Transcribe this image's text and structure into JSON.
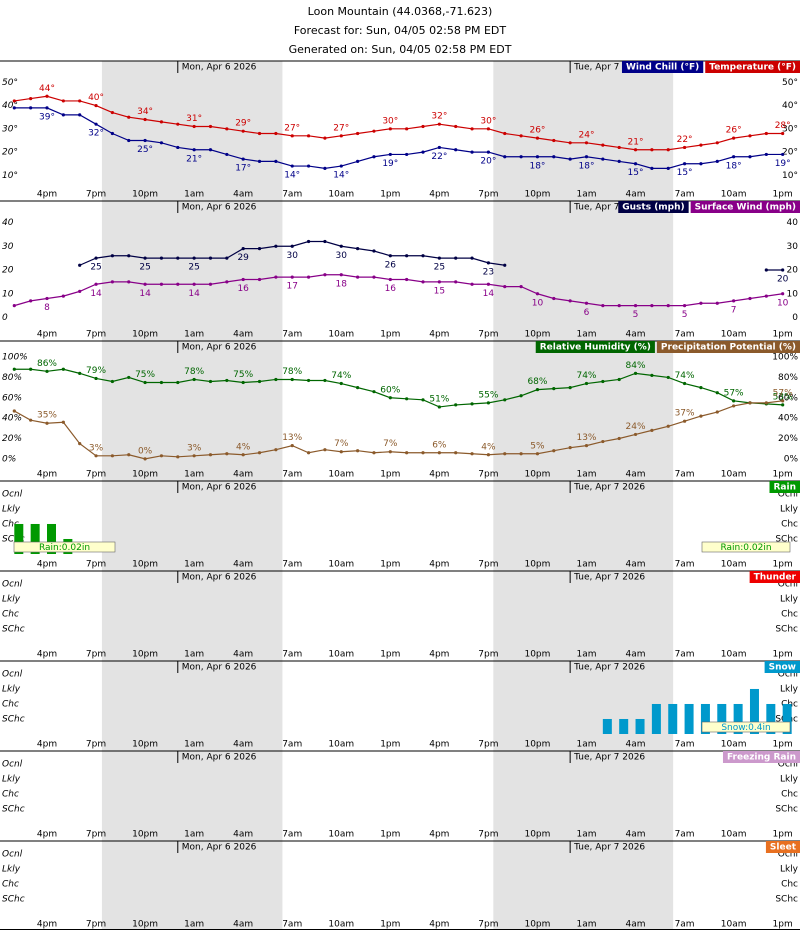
{
  "header": {
    "lines": [
      "Loon Mountain (44.0368,-71.623)",
      "Forecast for: Sun, 04/05 02:58 PM EDT",
      "Generated on: Sun, 04/05 02:58 PM EDT"
    ]
  },
  "time_axis": {
    "xlim": [
      -0.875,
      48.06
    ],
    "x": [
      0,
      1,
      2,
      3,
      4,
      5,
      6,
      7,
      8,
      9,
      10,
      11,
      12,
      13,
      14,
      15,
      16,
      17,
      18,
      19,
      20,
      21,
      22,
      23,
      24,
      25,
      26,
      27,
      28,
      29,
      30,
      31,
      32,
      33,
      34,
      35,
      36,
      37,
      38,
      39,
      40,
      41,
      42,
      43,
      44,
      45,
      46,
      47
    ],
    "xticks": [
      {
        "value": 2,
        "label": "4pm"
      },
      {
        "value": 5,
        "label": "7pm"
      },
      {
        "value": 8,
        "label": "10pm"
      },
      {
        "value": 11,
        "label": "1am"
      },
      {
        "value": 14,
        "label": "4am"
      },
      {
        "value": 17,
        "label": "7am"
      },
      {
        "value": 20,
        "label": "10am"
      },
      {
        "value": 23,
        "label": "1pm"
      },
      {
        "value": 26,
        "label": "4pm"
      },
      {
        "value": 29,
        "label": "7pm"
      },
      {
        "value": 32,
        "label": "10pm"
      },
      {
        "value": 35,
        "label": "1am"
      },
      {
        "value": 38,
        "label": "4am"
      },
      {
        "value": 41,
        "label": "7am"
      },
      {
        "value": 44,
        "label": "10am"
      },
      {
        "value": 47,
        "label": "1pm"
      }
    ],
    "days": [
      {
        "hour": 10,
        "label": "Mon, Apr 6 2026"
      },
      {
        "hour": 34,
        "label": "Tue, Apr 7 2026"
      }
    ],
    "night": [
      [
        5.36,
        16.4
      ],
      [
        29.3,
        40.3
      ]
    ]
  },
  "chart_data": [
    {
      "type": "line",
      "ylim": [
        5,
        54
      ],
      "yticks": [
        {
          "value": 50,
          "label": "50°"
        },
        {
          "value": 40,
          "label": "40°"
        },
        {
          "value": 30,
          "label": "30°"
        },
        {
          "value": 20,
          "label": "20°"
        },
        {
          "value": 10,
          "label": "10°"
        }
      ],
      "series": [
        {
          "name": "Wind Chill (°F)",
          "color": "#000088",
          "label_position": "below",
          "values": [
            39,
            39,
            39,
            36,
            36,
            32,
            28,
            25,
            25,
            24,
            22,
            21,
            21,
            19,
            17,
            16,
            16,
            14,
            14,
            13,
            14,
            16,
            18,
            19,
            19,
            20,
            22,
            21,
            20,
            20,
            18,
            18,
            18,
            18,
            17,
            18,
            17,
            16,
            15,
            13,
            13,
            15,
            15,
            16,
            18,
            18,
            19,
            19
          ],
          "value_labels": [
            null,
            null,
            "39°",
            null,
            null,
            "32°",
            null,
            null,
            "25°",
            null,
            null,
            "21°",
            null,
            null,
            "17°",
            null,
            null,
            "14°",
            null,
            null,
            "14°",
            null,
            null,
            "19°",
            null,
            null,
            "22°",
            null,
            null,
            "20°",
            null,
            null,
            "18°",
            null,
            null,
            "18°",
            null,
            null,
            "15°",
            null,
            null,
            "15°",
            null,
            null,
            "18°",
            null,
            null,
            "19°"
          ]
        },
        {
          "name": "Temperature (°F)",
          "color": "#cc0000",
          "label_position": "above",
          "values": [
            42,
            43,
            44,
            42,
            42,
            40,
            37,
            35,
            34,
            33,
            32,
            31,
            31,
            30,
            29,
            28,
            28,
            27,
            27,
            26,
            27,
            28,
            29,
            30,
            30,
            31,
            32,
            31,
            30,
            30,
            28,
            27,
            26,
            25,
            24,
            24,
            23,
            22,
            21,
            21,
            21,
            22,
            23,
            24,
            26,
            27,
            28,
            28
          ],
          "value_labels": [
            null,
            null,
            "44°",
            null,
            null,
            "40°",
            null,
            null,
            "34°",
            null,
            null,
            "31°",
            null,
            null,
            "29°",
            null,
            null,
            "27°",
            null,
            null,
            "27°",
            null,
            null,
            "30°",
            null,
            null,
            "32°",
            null,
            null,
            "30°",
            null,
            null,
            "26°",
            null,
            null,
            "24°",
            null,
            null,
            "21°",
            null,
            null,
            "22°",
            null,
            null,
            "26°",
            null,
            null,
            "28°"
          ]
        }
      ]
    },
    {
      "type": "line",
      "ylim": [
        -4,
        44
      ],
      "yticks": [
        40,
        30,
        20,
        10,
        0
      ],
      "series": [
        {
          "name": "Gusts (mph)",
          "color": "#000044",
          "label_position": "below",
          "values": [
            null,
            null,
            null,
            null,
            22,
            25,
            26,
            26,
            25,
            25,
            25,
            25,
            25,
            25,
            29,
            29,
            30,
            30,
            32,
            32,
            30,
            29,
            28,
            26,
            26,
            26,
            25,
            25,
            25,
            23,
            22,
            null,
            null,
            null,
            null,
            null,
            null,
            null,
            null,
            null,
            null,
            null,
            null,
            null,
            null,
            null,
            20,
            20
          ]
        },
        {
          "name": "Surface Wind (mph)",
          "color": "#880088",
          "label_position": "below",
          "values": [
            5,
            7,
            8,
            9,
            11,
            14,
            15,
            15,
            14,
            14,
            14,
            14,
            14,
            15,
            16,
            16,
            17,
            17,
            17,
            18,
            18,
            17,
            17,
            16,
            16,
            15,
            15,
            15,
            14,
            14,
            13,
            13,
            10,
            8,
            7,
            6,
            5,
            5,
            5,
            5,
            5,
            5,
            6,
            6,
            7,
            8,
            9,
            10
          ]
        }
      ]
    },
    {
      "type": "line",
      "ylim": [
        -8,
        104
      ],
      "yticks": [
        {
          "value": 100,
          "label": "100%"
        },
        {
          "value": 80,
          "label": "80%"
        },
        {
          "value": 60,
          "label": "60%"
        },
        {
          "value": 40,
          "label": "40%"
        },
        {
          "value": 20,
          "label": "20%"
        },
        {
          "value": 0,
          "label": "0%"
        }
      ],
      "series": [
        {
          "name": "Relative Humidity (%)",
          "color": "#006600",
          "label_position": "above",
          "values": [
            88,
            88,
            86,
            88,
            84,
            79,
            76,
            80,
            75,
            75,
            75,
            78,
            76,
            77,
            75,
            76,
            78,
            78,
            77,
            77,
            74,
            70,
            66,
            60,
            59,
            58,
            51,
            53,
            54,
            55,
            58,
            62,
            68,
            69,
            70,
            74,
            76,
            78,
            84,
            82,
            80,
            74,
            70,
            65,
            57,
            55,
            54,
            53
          ],
          "value_labels": [
            null,
            null,
            "86%",
            null,
            null,
            "79%",
            null,
            null,
            "75%",
            null,
            null,
            "78%",
            null,
            null,
            "75%",
            null,
            null,
            "78%",
            null,
            null,
            "74%",
            null,
            null,
            "60%",
            null,
            null,
            "51%",
            null,
            null,
            "55%",
            null,
            null,
            "68%",
            null,
            null,
            "74%",
            null,
            null,
            "84%",
            null,
            null,
            "74%",
            null,
            null,
            "57%",
            null,
            null,
            "53%"
          ]
        },
        {
          "name": "Precipitation Potential (%)",
          "color": "#8b5a2b",
          "label_position": "above",
          "values": [
            47,
            38,
            35,
            36,
            15,
            3,
            3,
            4,
            0,
            3,
            2,
            3,
            4,
            5,
            4,
            6,
            9,
            13,
            6,
            9,
            7,
            8,
            6,
            7,
            6,
            6,
            6,
            6,
            5,
            4,
            5,
            5,
            5,
            8,
            11,
            13,
            17,
            20,
            24,
            28,
            32,
            37,
            42,
            46,
            52,
            55,
            55,
            57
          ],
          "value_labels": [
            null,
            null,
            "35%",
            null,
            null,
            "3%",
            null,
            null,
            "0%",
            null,
            null,
            "3%",
            null,
            null,
            "4%",
            null,
            null,
            "13%",
            null,
            null,
            "7%",
            null,
            null,
            "7%",
            null,
            null,
            "6%",
            null,
            null,
            "4%",
            null,
            null,
            "5%",
            null,
            null,
            "13%",
            null,
            null,
            "24%",
            null,
            null,
            "37%",
            null,
            null,
            null,
            null,
            null,
            "57%"
          ]
        }
      ]
    },
    {
      "type": "bar",
      "ylim": [
        0,
        4.53
      ],
      "yticks": [
        {
          "value": 4,
          "label": "Ocnl"
        },
        {
          "value": 3,
          "label": "Lkly"
        },
        {
          "value": 2,
          "label": "Chc"
        },
        {
          "value": 1,
          "label": "SChc"
        }
      ],
      "accumulation_labels": [
        "Rain:0.02in",
        "Rain:0.02in"
      ],
      "series": [
        {
          "name": "Rain",
          "color": "#009900",
          "values": [
            2,
            2,
            2,
            1,
            null,
            null,
            null,
            null,
            null,
            null,
            null,
            null,
            null,
            null,
            null,
            null,
            null,
            null,
            null,
            null,
            null,
            null,
            null,
            null,
            null,
            null,
            null,
            null,
            null,
            null,
            null,
            null,
            null,
            null,
            null,
            null,
            null,
            null,
            null,
            null,
            null,
            null,
            null,
            null,
            null,
            null,
            null,
            null
          ]
        }
      ]
    },
    {
      "type": "bar",
      "ylim": [
        0,
        4.53
      ],
      "yticks": [
        {
          "value": 4,
          "label": "Ocnl"
        },
        {
          "value": 3,
          "label": "Lkly"
        },
        {
          "value": 2,
          "label": "Chc"
        },
        {
          "value": 1,
          "label": "SChc"
        }
      ],
      "series": [
        {
          "name": "Thunder",
          "color": "#ee0000"
        }
      ]
    },
    {
      "type": "bar",
      "ylim": [
        0,
        4.53
      ],
      "yticks": [
        {
          "value": 4,
          "label": "Ocnl"
        },
        {
          "value": 3,
          "label": "Lkly"
        },
        {
          "value": 2,
          "label": "Chc"
        },
        {
          "value": 1,
          "label": "SChc"
        }
      ],
      "accumulation_labels": [
        "Snow:0.4in"
      ],
      "series": [
        {
          "name": "Snow",
          "color": "#0099cc",
          "values": [
            null,
            null,
            null,
            null,
            null,
            null,
            null,
            null,
            null,
            null,
            null,
            null,
            null,
            null,
            null,
            null,
            null,
            null,
            null,
            null,
            null,
            null,
            null,
            null,
            null,
            null,
            null,
            null,
            null,
            null,
            null,
            null,
            null,
            null,
            null,
            null,
            1,
            1,
            1,
            2,
            2,
            2,
            2,
            2,
            2,
            3,
            2,
            2
          ]
        }
      ]
    },
    {
      "type": "bar",
      "ylim": [
        0,
        4.53
      ],
      "yticks": [
        {
          "value": 4,
          "label": "Ocnl"
        },
        {
          "value": 3,
          "label": "Lkly"
        },
        {
          "value": 2,
          "label": "Chc"
        },
        {
          "value": 1,
          "label": "SChc"
        }
      ],
      "series": [
        {
          "name": "Freezing Rain",
          "color": "#cc99cc"
        }
      ]
    },
    {
      "type": "bar",
      "ylim": [
        0,
        4.53
      ],
      "yticks": [
        {
          "value": 4,
          "label": "Ocnl"
        },
        {
          "value": 3,
          "label": "Lkly"
        },
        {
          "value": 2,
          "label": "Chc"
        },
        {
          "value": 1,
          "label": "SChc"
        }
      ],
      "series": [
        {
          "name": "Sleet",
          "color": "#e87020"
        }
      ]
    }
  ]
}
